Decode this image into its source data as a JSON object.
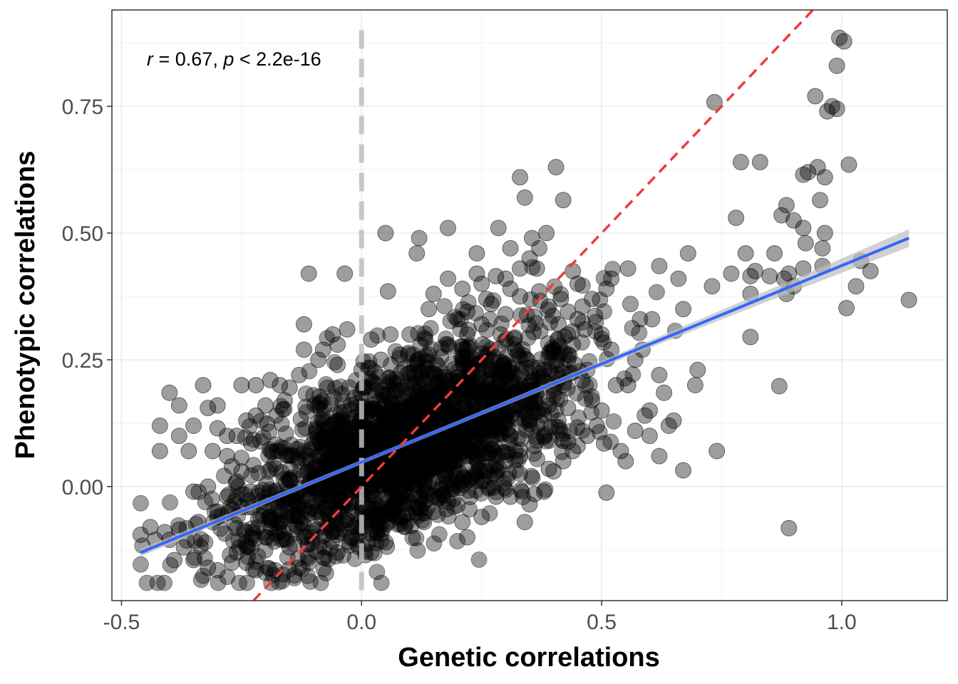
{
  "chart_data": {
    "type": "scatter",
    "title": "",
    "xlabel": "Genetic correlations",
    "ylabel": "Phenotypic correlations",
    "xlim": [
      -0.52,
      1.22
    ],
    "ylim": [
      -0.225,
      0.94
    ],
    "x_ticks": [
      -0.5,
      0.0,
      0.5,
      1.0
    ],
    "x_tick_labels": [
      "-0.5",
      "0.0",
      "0.5",
      "1.0"
    ],
    "y_ticks": [
      0.0,
      0.25,
      0.5,
      0.75
    ],
    "y_tick_labels": [
      "0.00",
      "0.25",
      "0.50",
      "0.75"
    ],
    "grid": true,
    "legend": "none",
    "annotation": {
      "r_symbol": "r",
      "r_text": " = 0.67, ",
      "p_symbol": "p",
      "p_text": " < 2.2e-16"
    },
    "reference_lines": [
      {
        "kind": "vertical",
        "x": 0.0,
        "style": "dashed",
        "color": "#bebebe"
      },
      {
        "kind": "identity",
        "slope": 1,
        "intercept": 0,
        "style": "dashed",
        "color": "#ef3b3b"
      }
    ],
    "fit": {
      "method": "linear",
      "x_range": [
        -0.46,
        1.14
      ],
      "start": [
        -0.46,
        -0.13
      ],
      "end": [
        1.14,
        0.49
      ],
      "color": "#3366ff",
      "ci_color": "#bdbdbd"
    },
    "point_style": {
      "color": "#000000",
      "opacity": 0.38,
      "radius": 11
    },
    "dense_cloud": {
      "count": 1900,
      "x_mean": 0.09,
      "x_sd": 0.17,
      "intercept": 0.045,
      "slope": 0.4,
      "resid_sd": 0.085,
      "x_min": -0.46,
      "x_max": 0.75,
      "seed": 7
    },
    "series": [
      {
        "points": [
          [
            0.995,
            0.885
          ],
          [
            1.005,
            0.878
          ],
          [
            0.99,
            0.83
          ],
          [
            0.735,
            0.758
          ],
          [
            0.945,
            0.77
          ],
          [
            0.97,
            0.74
          ],
          [
            0.99,
            0.745
          ],
          [
            0.98,
            0.75
          ],
          [
            1.015,
            0.635
          ],
          [
            0.95,
            0.63
          ],
          [
            0.93,
            0.62
          ],
          [
            0.92,
            0.615
          ],
          [
            0.965,
            0.61
          ],
          [
            0.79,
            0.64
          ],
          [
            0.83,
            0.64
          ],
          [
            0.885,
            0.555
          ],
          [
            0.955,
            0.565
          ],
          [
            0.875,
            0.535
          ],
          [
            0.9,
            0.525
          ],
          [
            0.92,
            0.51
          ],
          [
            0.965,
            0.5
          ],
          [
            0.78,
            0.53
          ],
          [
            0.77,
            0.42
          ],
          [
            0.925,
            0.48
          ],
          [
            0.96,
            0.47
          ],
          [
            0.86,
            0.46
          ],
          [
            0.8,
            0.46
          ],
          [
            0.96,
            0.435
          ],
          [
            0.92,
            0.43
          ],
          [
            1.04,
            0.445
          ],
          [
            1.06,
            0.425
          ],
          [
            0.89,
            0.42
          ],
          [
            0.82,
            0.425
          ],
          [
            0.85,
            0.415
          ],
          [
            0.88,
            0.41
          ],
          [
            0.81,
            0.415
          ],
          [
            0.9,
            0.395
          ],
          [
            0.885,
            0.38
          ],
          [
            0.81,
            0.38
          ],
          [
            1.03,
            0.395
          ],
          [
            1.01,
            0.352
          ],
          [
            1.14,
            0.368
          ],
          [
            0.73,
            0.395
          ],
          [
            0.81,
            0.295
          ],
          [
            0.87,
            0.198
          ],
          [
            0.89,
            -0.082
          ],
          [
            0.74,
            0.07
          ],
          [
            0.7,
            0.23
          ],
          [
            0.695,
            0.2
          ],
          [
            0.67,
            0.032
          ],
          [
            0.68,
            0.46
          ],
          [
            0.67,
            0.35
          ],
          [
            0.62,
            0.435
          ],
          [
            0.66,
            0.41
          ],
          [
            0.58,
            0.33
          ],
          [
            0.605,
            0.33
          ],
          [
            0.62,
            0.22
          ],
          [
            0.56,
            0.36
          ],
          [
            0.57,
            0.25
          ],
          [
            0.555,
            0.2
          ],
          [
            0.6,
            0.15
          ],
          [
            0.63,
            0.185
          ],
          [
            0.65,
            0.13
          ],
          [
            0.64,
            0.12
          ],
          [
            0.62,
            0.06
          ],
          [
            0.54,
            0.07
          ],
          [
            0.55,
            0.05
          ],
          [
            0.51,
            -0.012
          ],
          [
            0.505,
            0.085
          ],
          [
            0.53,
            0.2
          ],
          [
            0.57,
            0.11
          ],
          [
            0.59,
            0.14
          ],
          [
            0.6,
            0.1
          ],
          [
            0.585,
            0.27
          ],
          [
            0.52,
            0.27
          ],
          [
            0.5,
            0.3
          ],
          [
            0.465,
            0.31
          ],
          [
            0.45,
            0.33
          ],
          [
            0.44,
            0.425
          ],
          [
            0.415,
            0.37
          ],
          [
            0.51,
            0.39
          ],
          [
            0.52,
            0.41
          ],
          [
            0.555,
            0.43
          ],
          [
            0.43,
            0.25
          ],
          [
            0.43,
            0.155
          ],
          [
            0.42,
            0.09
          ],
          [
            0.44,
            0.07
          ],
          [
            0.39,
            0.035
          ],
          [
            0.36,
            -0.015
          ],
          [
            0.34,
            -0.07
          ],
          [
            0.4,
            0.18
          ],
          [
            0.42,
            0.2
          ],
          [
            0.405,
            0.24
          ],
          [
            0.35,
            0.2
          ],
          [
            0.32,
            0.27
          ],
          [
            0.3,
            0.41
          ],
          [
            0.28,
            0.415
          ],
          [
            0.33,
            0.43
          ],
          [
            0.35,
            0.45
          ],
          [
            0.37,
            0.47
          ],
          [
            0.355,
            0.49
          ],
          [
            0.31,
            0.47
          ],
          [
            0.285,
            0.51
          ],
          [
            0.34,
            0.57
          ],
          [
            0.33,
            0.61
          ],
          [
            0.405,
            0.63
          ],
          [
            0.42,
            0.565
          ],
          [
            0.385,
            0.5
          ],
          [
            0.24,
            0.46
          ],
          [
            0.18,
            0.51
          ],
          [
            0.12,
            0.49
          ],
          [
            0.115,
            0.46
          ],
          [
            0.05,
            0.5
          ],
          [
            0.055,
            0.385
          ],
          [
            -0.11,
            0.42
          ],
          [
            -0.035,
            0.42
          ],
          [
            -0.12,
            0.32
          ],
          [
            -0.12,
            0.27
          ],
          [
            -0.17,
            0.2
          ],
          [
            -0.19,
            0.21
          ],
          [
            -0.22,
            0.2
          ],
          [
            -0.25,
            0.2
          ],
          [
            -0.33,
            0.2
          ],
          [
            -0.38,
            0.16
          ],
          [
            -0.32,
            0.155
          ],
          [
            -0.4,
            0.185
          ],
          [
            -0.3,
            0.16
          ],
          [
            -0.3,
            0.115
          ],
          [
            -0.28,
            0.1
          ],
          [
            -0.35,
            0.12
          ],
          [
            -0.42,
            0.12
          ],
          [
            -0.38,
            0.1
          ],
          [
            -0.42,
            0.07
          ],
          [
            -0.36,
            0.07
          ],
          [
            -0.31,
            0.07
          ],
          [
            -0.27,
            0.04
          ],
          [
            -0.25,
            0.03
          ],
          [
            -0.32,
            0.0
          ],
          [
            -0.35,
            -0.01
          ],
          [
            -0.28,
            -0.02
          ],
          [
            -0.25,
            -0.04
          ],
          [
            -0.3,
            -0.06
          ],
          [
            -0.34,
            -0.07
          ],
          [
            -0.38,
            -0.085
          ],
          [
            -0.41,
            -0.09
          ],
          [
            -0.44,
            -0.08
          ],
          [
            -0.46,
            -0.095
          ],
          [
            -0.43,
            -0.105
          ],
          [
            -0.4,
            -0.105
          ],
          [
            -0.37,
            -0.12
          ],
          [
            -0.35,
            -0.145
          ],
          [
            -0.39,
            -0.145
          ],
          [
            -0.32,
            -0.16
          ],
          [
            -0.3,
            -0.165
          ],
          [
            -0.27,
            -0.15
          ],
          [
            -0.24,
            -0.15
          ],
          [
            -0.22,
            -0.165
          ],
          [
            -0.2,
            -0.17
          ],
          [
            -0.18,
            -0.165
          ],
          [
            -0.13,
            -0.16
          ],
          [
            -0.14,
            -0.175
          ],
          [
            -0.11,
            -0.15
          ],
          [
            -0.08,
            -0.14
          ],
          [
            -0.05,
            -0.13
          ],
          [
            0.02,
            -0.13
          ],
          [
            0.05,
            -0.11
          ],
          [
            0.09,
            -0.08
          ],
          [
            0.13,
            -0.07
          ],
          [
            0.15,
            -0.05
          ],
          [
            0.18,
            -0.03
          ],
          [
            0.21,
            -0.07
          ],
          [
            0.22,
            -0.1
          ],
          [
            0.25,
            -0.06
          ],
          [
            0.28,
            -0.02
          ],
          [
            0.31,
            -0.02
          ],
          [
            0.35,
            -0.035
          ],
          [
            0.38,
            -0.01
          ],
          [
            0.4,
            0.03
          ],
          [
            0.42,
            0.05
          ],
          [
            0.45,
            0.08
          ],
          [
            0.47,
            0.1
          ],
          [
            0.49,
            0.12
          ],
          [
            0.5,
            0.15
          ],
          [
            0.48,
            0.17
          ],
          [
            0.46,
            0.21
          ],
          [
            0.47,
            0.23
          ],
          [
            0.44,
            0.28
          ],
          [
            0.43,
            0.3
          ],
          [
            0.41,
            0.32
          ],
          [
            0.43,
            0.345
          ],
          [
            0.46,
            0.355
          ],
          [
            0.48,
            0.37
          ],
          [
            0.37,
            0.385
          ],
          [
            0.31,
            0.39
          ],
          [
            0.25,
            0.4
          ],
          [
            0.21,
            0.39
          ],
          [
            0.18,
            0.41
          ],
          [
            0.15,
            0.38
          ],
          [
            0.22,
            0.345
          ],
          [
            0.27,
            0.36
          ],
          [
            0.36,
            0.335
          ],
          [
            0.29,
            0.3
          ],
          [
            0.22,
            0.3
          ],
          [
            0.2,
            0.33
          ],
          [
            0.14,
            0.35
          ],
          [
            0.1,
            0.3
          ],
          [
            0.06,
            0.3
          ],
          [
            0.02,
            0.29
          ],
          [
            -0.03,
            0.31
          ],
          [
            -0.05,
            0.28
          ],
          [
            -0.08,
            0.27
          ],
          [
            -0.05,
            0.24
          ],
          [
            -0.09,
            0.25
          ],
          [
            -0.06,
            0.3
          ],
          [
            -0.13,
            0.22
          ],
          [
            -0.15,
            0.195
          ],
          [
            -0.1,
            0.18
          ],
          [
            -0.16,
            0.17
          ],
          [
            -0.2,
            0.16
          ],
          [
            -0.22,
            0.14
          ],
          [
            -0.24,
            0.13
          ],
          [
            -0.26,
            0.1
          ],
          [
            -0.23,
            0.085
          ],
          [
            -0.28,
            0.06
          ],
          [
            -0.26,
            0.01
          ],
          [
            -0.23,
            -0.01
          ],
          [
            -0.21,
            -0.03
          ],
          [
            -0.19,
            -0.06
          ],
          [
            -0.17,
            -0.09
          ],
          [
            -0.2,
            -0.1
          ],
          [
            -0.23,
            -0.12
          ],
          [
            -0.26,
            -0.13
          ],
          [
            -0.15,
            -0.12
          ],
          [
            -0.12,
            -0.1
          ],
          [
            -0.1,
            -0.08
          ],
          [
            -0.06,
            -0.09
          ],
          [
            -0.02,
            -0.1
          ],
          [
            0.01,
            -0.07
          ],
          [
            0.04,
            -0.06
          ],
          [
            0.07,
            -0.04
          ],
          [
            0.1,
            -0.03
          ],
          [
            0.12,
            -0.02
          ],
          [
            0.16,
            -0.02
          ],
          [
            0.19,
            0.0
          ],
          [
            0.23,
            0.02
          ],
          [
            0.26,
            0.03
          ],
          [
            0.3,
            0.05
          ],
          [
            0.33,
            0.06
          ],
          [
            0.36,
            0.08
          ],
          [
            0.38,
            0.1
          ],
          [
            0.41,
            0.13
          ],
          [
            0.39,
            0.16
          ],
          [
            0.36,
            0.17
          ],
          [
            0.33,
            0.19
          ],
          [
            0.3,
            0.21
          ],
          [
            0.27,
            0.23
          ],
          [
            0.24,
            0.25
          ],
          [
            0.21,
            0.27
          ],
          [
            0.18,
            0.28
          ],
          [
            0.14,
            0.26
          ],
          [
            0.11,
            0.24
          ],
          [
            0.08,
            0.26
          ],
          [
            0.04,
            0.25
          ],
          [
            0.0,
            0.23
          ],
          [
            0.3,
            0.34
          ],
          [
            0.25,
            0.32
          ],
          [
            0.33,
            0.375
          ],
          [
            0.39,
            0.355
          ],
          [
            0.4,
            0.27
          ],
          [
            0.38,
            0.23
          ],
          [
            0.345,
            0.25
          ],
          [
            0.45,
            0.4
          ],
          [
            0.365,
            0.43
          ],
          [
            0.26,
            0.37
          ],
          [
            0.24,
            0.42
          ]
        ]
      }
    ]
  }
}
